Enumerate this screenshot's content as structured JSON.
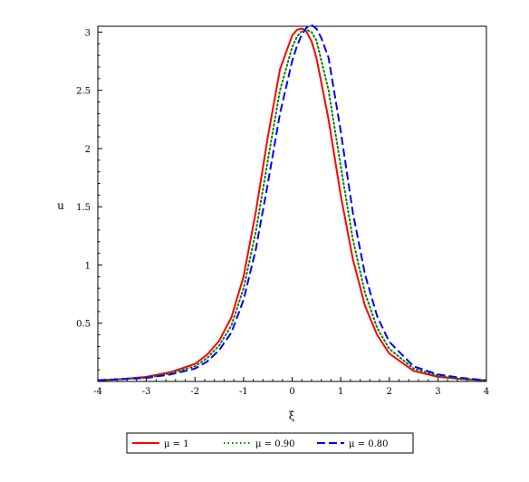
{
  "chart_data": {
    "type": "line",
    "title": "",
    "xlabel": "ξ",
    "ylabel": "u",
    "xlim": [
      -4,
      4
    ],
    "ylim": [
      0,
      3.05
    ],
    "xticks": [
      "-4",
      "-3",
      "-2",
      "-1",
      "0",
      "1",
      "2",
      "3",
      "4"
    ],
    "yticks": [
      "0.5",
      "1",
      "1.5",
      "2",
      "2.5",
      "3"
    ],
    "grid": false,
    "legend_position": "bottom",
    "series": [
      {
        "name": "μ = 1",
        "color": "#ff0000",
        "style": "solid",
        "x": [
          -4,
          -3.5,
          -3,
          -2.5,
          -2,
          -1.75,
          -1.5,
          -1.25,
          -1,
          -0.75,
          -0.5,
          -0.25,
          0,
          0.1,
          0.2,
          0.25,
          0.3,
          0.4,
          0.5,
          0.75,
          1,
          1.25,
          1.5,
          1.75,
          2,
          2.5,
          3,
          3.5,
          4
        ],
        "y": [
          0.01,
          0.02,
          0.04,
          0.08,
          0.15,
          0.23,
          0.35,
          0.55,
          0.9,
          1.45,
          2.1,
          2.68,
          2.97,
          3.02,
          3.03,
          3.02,
          3.0,
          2.92,
          2.78,
          2.25,
          1.6,
          1.05,
          0.65,
          0.4,
          0.24,
          0.09,
          0.04,
          0.02,
          0.01
        ]
      },
      {
        "name": "μ = 0.90",
        "color": "#008000",
        "style": "dotted",
        "x": [
          -4,
          -3.5,
          -3,
          -2.5,
          -2,
          -1.75,
          -1.5,
          -1.25,
          -1,
          -0.75,
          -0.5,
          -0.25,
          0,
          0.1,
          0.2,
          0.3,
          0.4,
          0.5,
          0.75,
          1,
          1.25,
          1.5,
          1.75,
          2,
          2.5,
          3,
          3.5,
          4
        ],
        "y": [
          0.01,
          0.02,
          0.03,
          0.07,
          0.13,
          0.2,
          0.31,
          0.48,
          0.8,
          1.28,
          1.9,
          2.5,
          2.87,
          2.96,
          3.01,
          3.02,
          3.0,
          2.93,
          2.5,
          1.85,
          1.22,
          0.76,
          0.46,
          0.28,
          0.11,
          0.05,
          0.02,
          0.01
        ]
      },
      {
        "name": "μ = 0.80",
        "color": "#0000ff",
        "style": "dashed",
        "x": [
          -4,
          -3.5,
          -3,
          -2.5,
          -2,
          -1.75,
          -1.5,
          -1.25,
          -1,
          -0.75,
          -0.5,
          -0.25,
          0,
          0.1,
          0.2,
          0.3,
          0.4,
          0.5,
          0.6,
          0.75,
          1,
          1.25,
          1.5,
          1.75,
          2,
          2.5,
          3,
          3.5,
          4
        ],
        "y": [
          0.01,
          0.02,
          0.03,
          0.06,
          0.11,
          0.17,
          0.27,
          0.42,
          0.7,
          1.13,
          1.7,
          2.3,
          2.75,
          2.88,
          2.98,
          3.04,
          3.06,
          3.03,
          2.95,
          2.78,
          2.15,
          1.45,
          0.92,
          0.56,
          0.34,
          0.13,
          0.06,
          0.03,
          0.01
        ]
      }
    ]
  }
}
